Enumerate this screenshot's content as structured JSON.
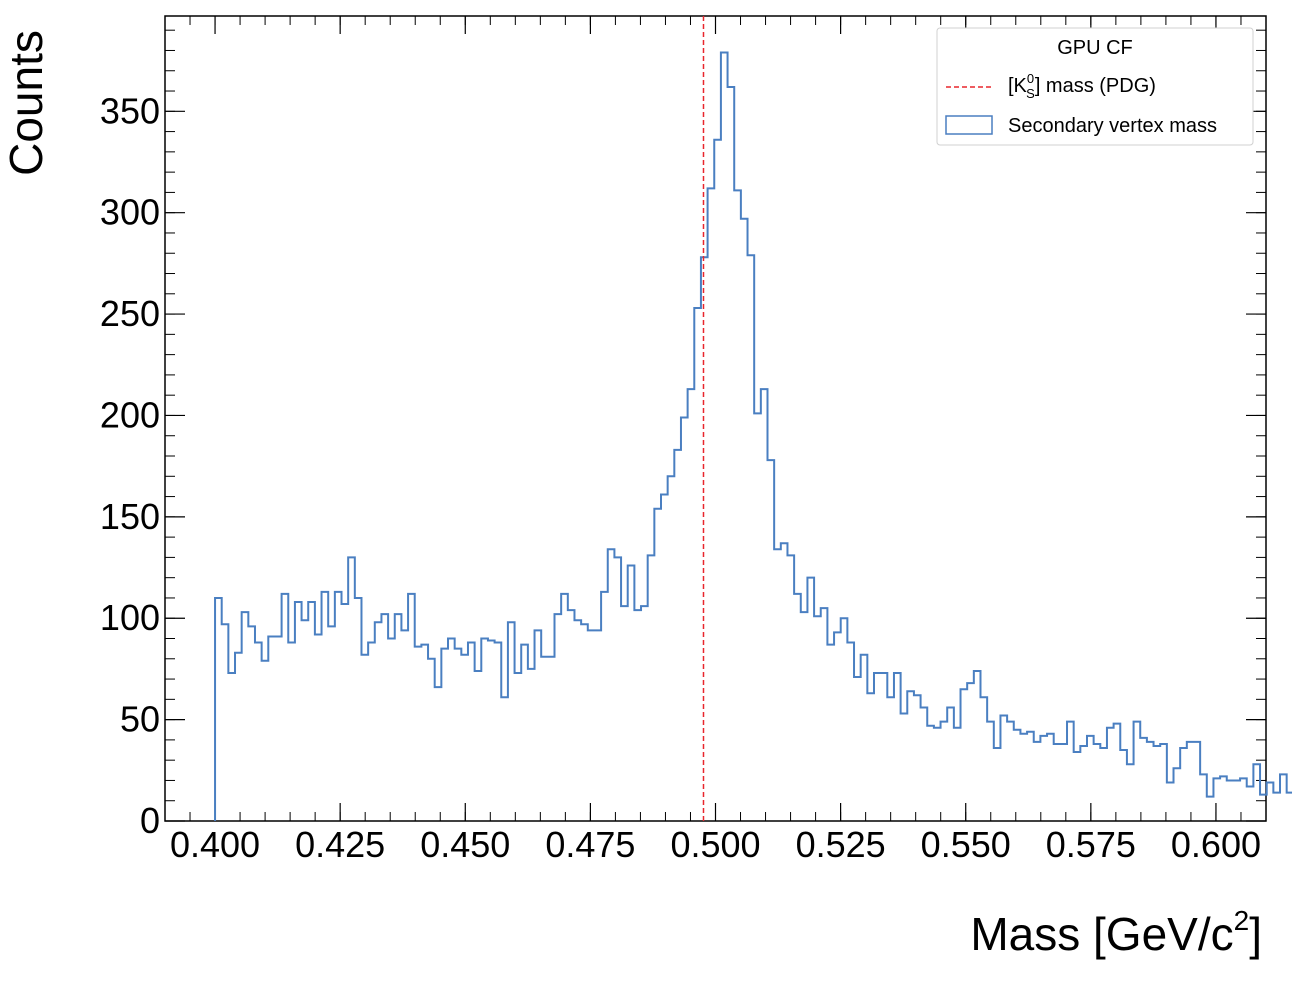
{
  "chart_data": {
    "type": "histogram",
    "xlabel": "Mass [GeV/c",
    "xlabel_sup": "2",
    "xlabel_end": "]",
    "ylabel": "Counts",
    "xlim": [
      0.39,
      0.61
    ],
    "ylim": [
      0,
      397
    ],
    "grid": false,
    "x_ticks": [
      "0.400",
      "0.425",
      "0.450",
      "0.475",
      "0.500",
      "0.525",
      "0.550",
      "0.575",
      "0.600"
    ],
    "y_ticks": [
      "0",
      "50",
      "100",
      "150",
      "200",
      "250",
      "300",
      "350"
    ],
    "legend": {
      "title": "GPU CF",
      "placement": "top-right",
      "entries": {
        "pdg_prefix": "[K",
        "pdg_sup": "0",
        "pdg_sub": "S",
        "pdg_suffix": "] mass (PDG)",
        "hist_label": "Secondary vertex mass"
      }
    },
    "reference_line": {
      "x": 0.4976,
      "color": "#e8262d",
      "style": "dashed"
    },
    "series": [
      {
        "type": "step",
        "color": "#4a7fc1",
        "bin_start": 0.4,
        "bin_width": 0.00133,
        "values": [
          110,
          97,
          73,
          83,
          103,
          96,
          88,
          79,
          91,
          91,
          112,
          88,
          108,
          99,
          108,
          92,
          113,
          96,
          113,
          107,
          130,
          110,
          82,
          88,
          98,
          102,
          90,
          102,
          94,
          112,
          86,
          87,
          80,
          66,
          85,
          90,
          85,
          82,
          88,
          74,
          90,
          89,
          88,
          61,
          98,
          73,
          87,
          75,
          94,
          81,
          81,
          102,
          112,
          104,
          99,
          97,
          94,
          94,
          113,
          134,
          130,
          106,
          126,
          104,
          106,
          131,
          154,
          161,
          170,
          183,
          199,
          213,
          253,
          278,
          312,
          336,
          379,
          362,
          311,
          297,
          279,
          201,
          213,
          178,
          134,
          137,
          131,
          112,
          103,
          120,
          101,
          105,
          87,
          93,
          100,
          88,
          71,
          82,
          63,
          73,
          73,
          61,
          73,
          53,
          64,
          62,
          56,
          47,
          46,
          49,
          56,
          46,
          65,
          68,
          74,
          61,
          49,
          36,
          52,
          49,
          45,
          43,
          44,
          39,
          42,
          43,
          38,
          38,
          49,
          34,
          37,
          42,
          38,
          36,
          46,
          48,
          35,
          28,
          49,
          41,
          39,
          37,
          38,
          19,
          26,
          36,
          39,
          39,
          23,
          12,
          21,
          22,
          20,
          20,
          21,
          17,
          28,
          13,
          19,
          14,
          23,
          14,
          0
        ]
      }
    ]
  }
}
